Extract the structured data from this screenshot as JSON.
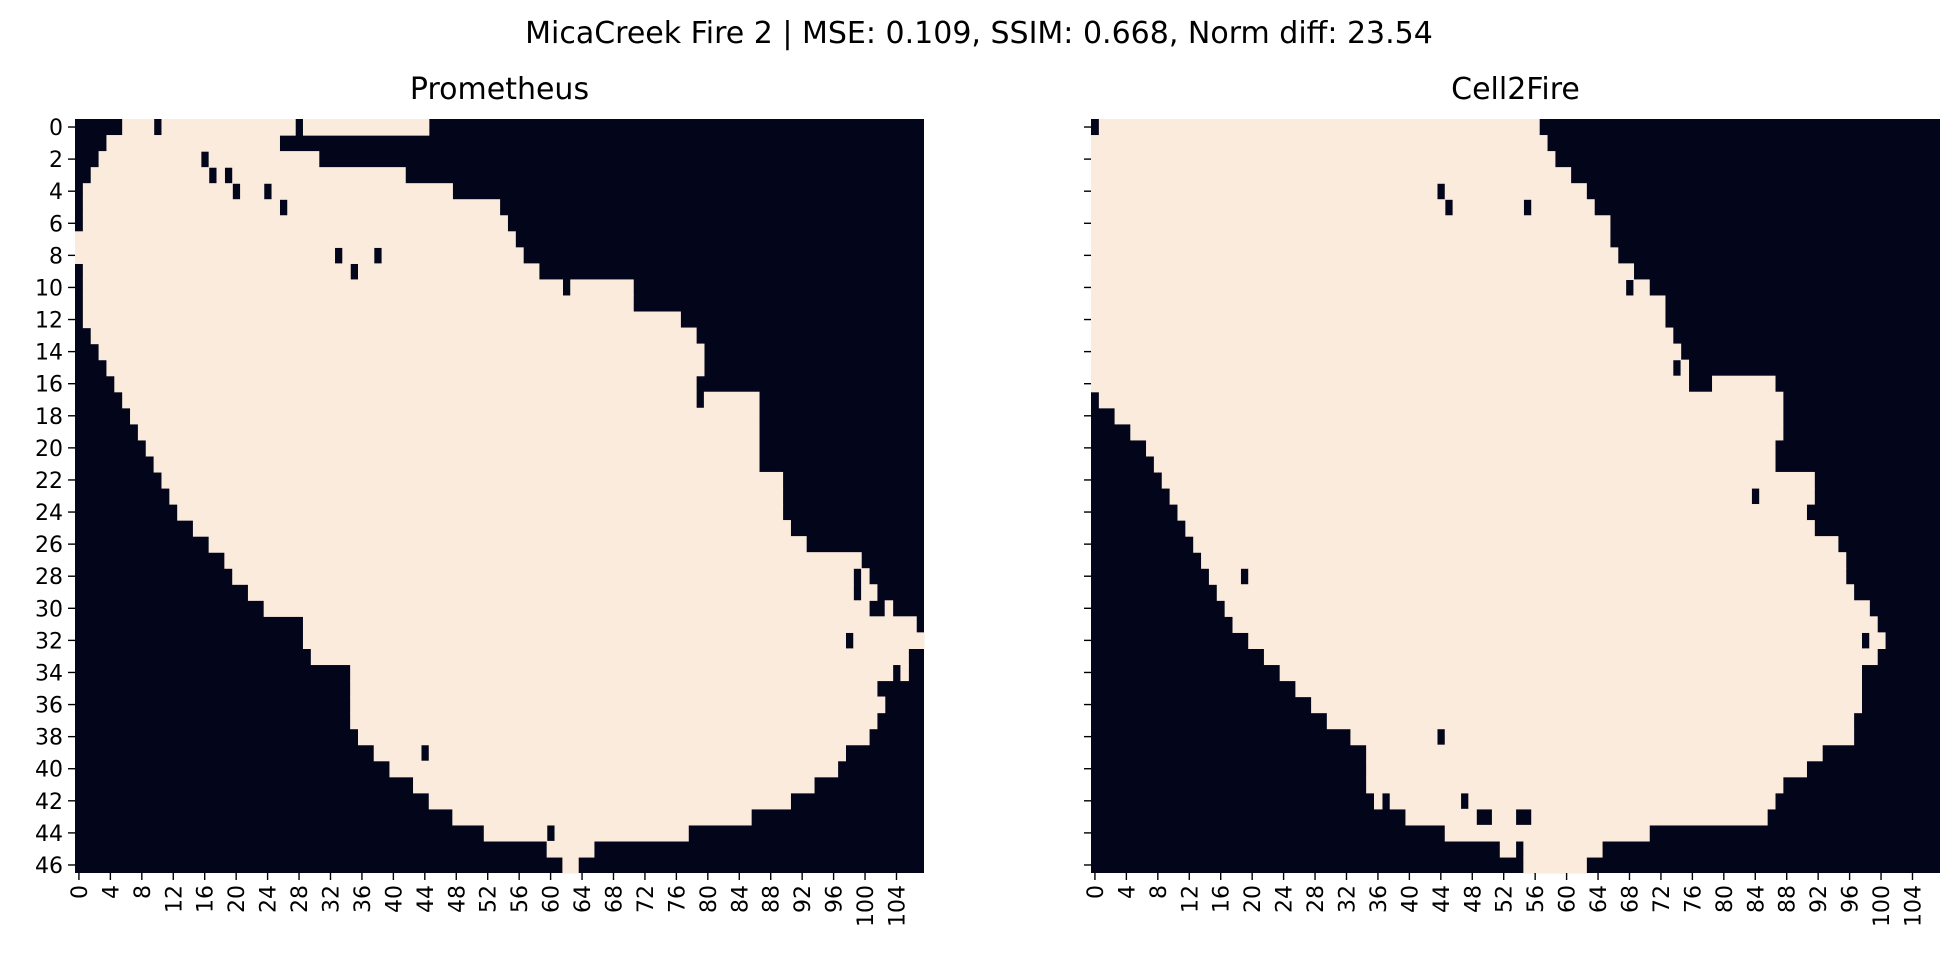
{
  "suptitle": "MicaCreek Fire 2 | MSE: 0.109, SSIM: 0.668, Norm diff: 23.54",
  "colors": {
    "burned": "#faebdd",
    "unburned": "#03051a",
    "axis": "#000000"
  },
  "chart_data": [
    {
      "type": "heatmap",
      "title": "Prometheus",
      "rows": 47,
      "cols": 108,
      "xticks": [
        0,
        4,
        8,
        12,
        16,
        20,
        24,
        28,
        32,
        36,
        40,
        44,
        48,
        52,
        56,
        60,
        64,
        68,
        72,
        76,
        80,
        84,
        88,
        92,
        96,
        100,
        104
      ],
      "yticks": [
        0,
        2,
        4,
        6,
        8,
        10,
        12,
        14,
        16,
        18,
        20,
        22,
        24,
        26,
        28,
        30,
        32,
        34,
        36,
        38,
        40,
        42,
        44,
        46
      ],
      "show_ytick_labels": true,
      "burned_left_col": [
        6,
        4,
        3,
        2,
        1,
        1,
        1,
        0,
        0,
        1,
        1,
        1,
        1,
        2,
        3,
        4,
        5,
        6,
        7,
        8,
        9,
        10,
        11,
        12,
        13,
        15,
        17,
        19,
        20,
        22,
        24,
        29,
        29,
        30,
        35,
        35,
        35,
        35,
        36,
        38,
        40,
        43,
        45,
        48,
        52,
        60,
        62
      ],
      "burned_right_col": [
        44,
        25,
        30,
        41,
        47,
        53,
        54,
        55,
        56,
        58,
        70,
        70,
        76,
        78,
        79,
        79,
        78,
        86,
        86,
        86,
        86,
        86,
        89,
        89,
        89,
        90,
        92,
        99,
        100,
        101,
        103,
        106,
        107,
        105,
        105,
        101,
        102,
        101,
        100,
        97,
        96,
        93,
        90,
        85,
        77,
        65,
        63
      ],
      "holes": [
        [
          0,
          10
        ],
        [
          0,
          28
        ],
        [
          2,
          16
        ],
        [
          3,
          17
        ],
        [
          3,
          19
        ],
        [
          4,
          20
        ],
        [
          4,
          24
        ],
        [
          5,
          26
        ],
        [
          8,
          33
        ],
        [
          8,
          38
        ],
        [
          9,
          35
        ],
        [
          10,
          62
        ],
        [
          17,
          79
        ],
        [
          28,
          99
        ],
        [
          29,
          99
        ],
        [
          30,
          101
        ],
        [
          30,
          102
        ],
        [
          32,
          98
        ],
        [
          34,
          104
        ],
        [
          35,
          105
        ],
        [
          39,
          44
        ],
        [
          44,
          60
        ],
        [
          46,
          61
        ]
      ]
    },
    {
      "type": "heatmap",
      "title": "Cell2Fire",
      "rows": 47,
      "cols": 108,
      "xticks": [
        0,
        4,
        8,
        12,
        16,
        20,
        24,
        28,
        32,
        36,
        40,
        44,
        48,
        52,
        56,
        60,
        64,
        68,
        72,
        76,
        80,
        84,
        88,
        92,
        96,
        100,
        104
      ],
      "yticks": [
        0,
        2,
        4,
        6,
        8,
        10,
        12,
        14,
        16,
        18,
        20,
        22,
        24,
        26,
        28,
        30,
        32,
        34,
        36,
        38,
        40,
        42,
        44,
        46
      ],
      "show_ytick_labels": false,
      "burned_left_col": [
        0,
        0,
        0,
        0,
        0,
        0,
        0,
        0,
        0,
        0,
        0,
        0,
        0,
        0,
        0,
        0,
        0,
        1,
        3,
        5,
        7,
        8,
        9,
        10,
        11,
        12,
        13,
        14,
        15,
        16,
        17,
        18,
        20,
        22,
        24,
        26,
        28,
        30,
        33,
        35,
        35,
        35,
        36,
        40,
        45,
        52,
        55
      ],
      "burned_right_col": [
        56,
        57,
        58,
        60,
        62,
        63,
        65,
        65,
        67,
        68,
        70,
        72,
        72,
        73,
        74,
        75,
        86,
        87,
        87,
        87,
        86,
        86,
        91,
        91,
        90,
        91,
        94,
        95,
        95,
        96,
        98,
        99,
        100,
        99,
        97,
        97,
        97,
        96,
        96,
        92,
        90,
        87,
        86,
        85,
        70,
        64,
        62
      ],
      "holes": [
        [
          0,
          0
        ],
        [
          4,
          44
        ],
        [
          5,
          45
        ],
        [
          5,
          55
        ],
        [
          7,
          66
        ],
        [
          8,
          67
        ],
        [
          9,
          69
        ],
        [
          10,
          68
        ],
        [
          15,
          74
        ],
        [
          15,
          82
        ],
        [
          16,
          76
        ],
        [
          16,
          77
        ],
        [
          16,
          78
        ],
        [
          23,
          84
        ],
        [
          28,
          19
        ],
        [
          32,
          98
        ],
        [
          38,
          44
        ],
        [
          42,
          37
        ],
        [
          42,
          47
        ],
        [
          43,
          49
        ],
        [
          43,
          50
        ],
        [
          43,
          54
        ],
        [
          43,
          55
        ],
        [
          44,
          80
        ],
        [
          45,
          54
        ]
      ]
    }
  ]
}
